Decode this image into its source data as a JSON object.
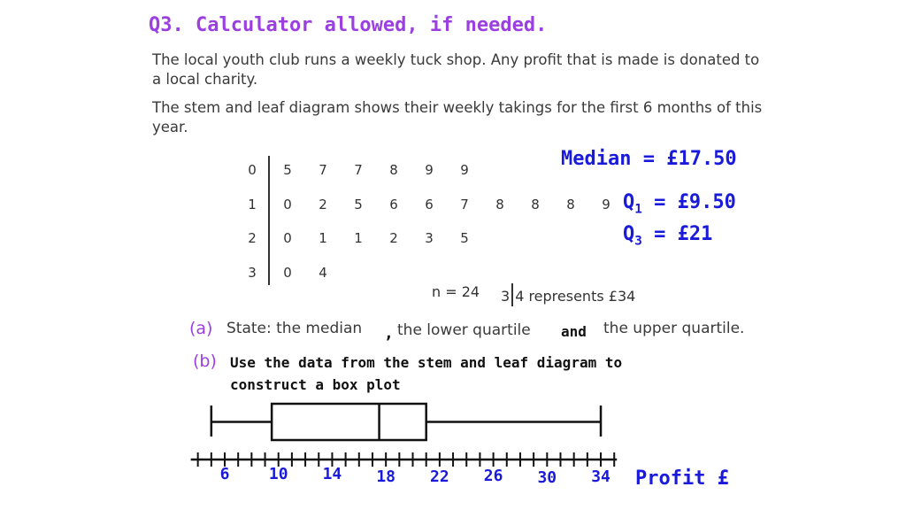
{
  "question": {
    "title": "Q3.  Calculator allowed, if needed.",
    "para1": "The local youth club runs a weekly tuck shop.  Any profit that is made is donated to a local charity.",
    "para2": "The stem and leaf diagram shows their weekly takings for the first 6 months of this year."
  },
  "stem_leaf": {
    "rows": [
      {
        "stem": "0",
        "leaves": [
          "5",
          "7",
          "7",
          "8",
          "9",
          "9"
        ]
      },
      {
        "stem": "1",
        "leaves": [
          "0",
          "2",
          "5",
          "6",
          "6",
          "7",
          "8",
          "8",
          "8",
          "9"
        ]
      },
      {
        "stem": "2",
        "leaves": [
          "0",
          "1",
          "1",
          "2",
          "3",
          "5"
        ]
      },
      {
        "stem": "3",
        "leaves": [
          "0",
          "4"
        ]
      }
    ],
    "n_label": "n = 24",
    "key_stem": "3",
    "key_text": "4 represents £34"
  },
  "answers": {
    "median": "Median = £17.50",
    "q1_prefix": "Q",
    "q1_sub": "1",
    "q1_value": " = £9.50",
    "q3_prefix": "Q",
    "q3_sub": "3",
    "q3_value": " = £21"
  },
  "part_a": {
    "label": "(a)",
    "text1": "State: the median",
    "comma": ",",
    "text2": "the lower quartile",
    "and": "and",
    "text3": "the upper quartile."
  },
  "part_b": {
    "label": "(b)",
    "line1": "Use the data from the stem and leaf diagram to",
    "line2": "construct a box plot"
  },
  "chart_data": {
    "type": "boxplot",
    "min": 5,
    "q1": 9.5,
    "median": 17.5,
    "q3": 21,
    "max": 34,
    "axis_min": 4,
    "axis_max": 35,
    "tick_step": 2,
    "tick_labels": [
      "6",
      "10",
      "14",
      "18",
      "22",
      "26",
      "30",
      "34"
    ],
    "xlabel": "Profit £"
  }
}
